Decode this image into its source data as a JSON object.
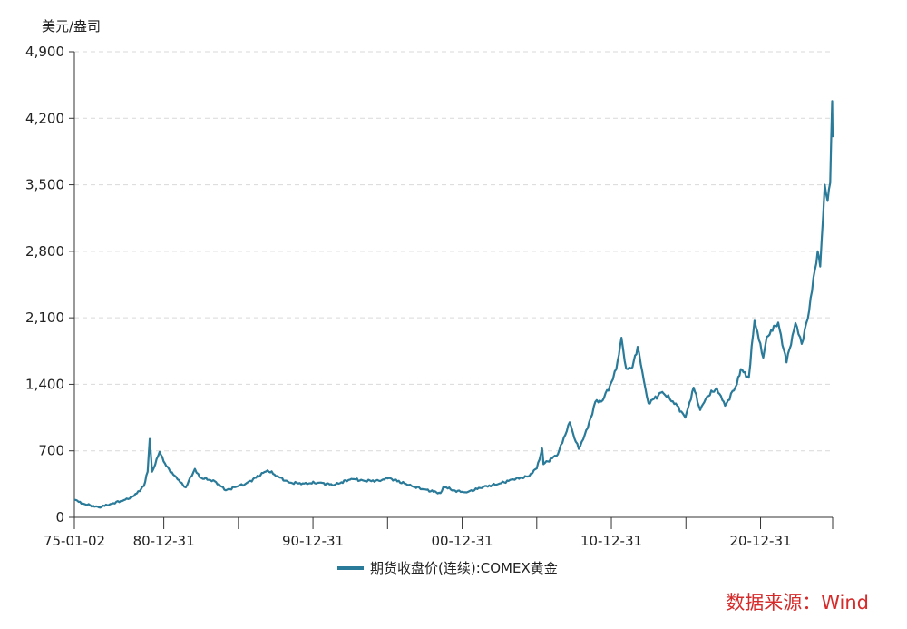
{
  "chart_data": {
    "type": "line",
    "ylabel": "美元/盎司",
    "ylim": [
      0,
      4900
    ],
    "yticks": [
      0,
      700,
      1400,
      2100,
      2800,
      3500,
      4200,
      4900
    ],
    "ytick_labels": [
      "0",
      "700",
      "1,400",
      "2,100",
      "2,800",
      "3,500",
      "4,200",
      "4,900"
    ],
    "x_range": [
      "1975-01-02",
      "2025-10-31"
    ],
    "xtick_labels": [
      {
        "date": "1975-01-02",
        "label": "75-01-02"
      },
      {
        "date": "1980-12-31",
        "label": "80-12-31"
      },
      {
        "date": "1990-12-31",
        "label": "90-12-31"
      },
      {
        "date": "2000-12-31",
        "label": "00-12-31"
      },
      {
        "date": "2010-12-31",
        "label": "10-12-31"
      },
      {
        "date": "2020-12-31",
        "label": "20-12-31"
      }
    ],
    "minor_tick_dates": [
      "1985-12-31",
      "1995-12-31",
      "2005-12-31",
      "2015-12-31",
      "2025-10-31"
    ],
    "grid": true,
    "legend_position": "bottom-center",
    "series": [
      {
        "name": "期货收盘价(连续):COMEX黄金",
        "color": "#2a7a99",
        "points": [
          [
            "1975-01-02",
            185
          ],
          [
            "1975-09-01",
            140
          ],
          [
            "1976-08-25",
            105
          ],
          [
            "1977-06-01",
            140
          ],
          [
            "1978-06-01",
            185
          ],
          [
            "1979-01-01",
            225
          ],
          [
            "1979-09-01",
            330
          ],
          [
            "1979-12-01",
            480
          ],
          [
            "1980-01-21",
            825
          ],
          [
            "1980-03-20",
            480
          ],
          [
            "1980-09-20",
            690
          ],
          [
            "1981-03-01",
            540
          ],
          [
            "1981-12-01",
            400
          ],
          [
            "1982-06-21",
            315
          ],
          [
            "1983-01-31",
            510
          ],
          [
            "1983-06-01",
            420
          ],
          [
            "1984-06-01",
            380
          ],
          [
            "1985-02-25",
            285
          ],
          [
            "1985-12-31",
            330
          ],
          [
            "1986-06-01",
            345
          ],
          [
            "1987-12-14",
            495
          ],
          [
            "1988-06-01",
            450
          ],
          [
            "1989-06-01",
            365
          ],
          [
            "1990-06-01",
            355
          ],
          [
            "1991-06-01",
            365
          ],
          [
            "1992-06-01",
            340
          ],
          [
            "1993-07-30",
            405
          ],
          [
            "1994-06-01",
            385
          ],
          [
            "1995-06-01",
            385
          ],
          [
            "1996-02-01",
            415
          ],
          [
            "1997-06-01",
            340
          ],
          [
            "1998-06-01",
            295
          ],
          [
            "1999-07-20",
            255
          ],
          [
            "1999-10-01",
            325
          ],
          [
            "2000-06-01",
            285
          ],
          [
            "2001-02-01",
            265
          ],
          [
            "2001-06-01",
            270
          ],
          [
            "2002-06-01",
            320
          ],
          [
            "2003-06-01",
            350
          ],
          [
            "2004-06-01",
            400
          ],
          [
            "2005-06-01",
            430
          ],
          [
            "2005-12-31",
            515
          ],
          [
            "2006-05-12",
            725
          ],
          [
            "2006-06-14",
            560
          ],
          [
            "2007-06-01",
            665
          ],
          [
            "2008-03-17",
            1000
          ],
          [
            "2008-06-01",
            890
          ],
          [
            "2008-10-24",
            720
          ],
          [
            "2009-06-01",
            940
          ],
          [
            "2009-12-03",
            1215
          ],
          [
            "2010-06-01",
            1230
          ],
          [
            "2010-12-31",
            1420
          ],
          [
            "2011-05-01",
            1560
          ],
          [
            "2011-09-06",
            1890
          ],
          [
            "2011-12-29",
            1565
          ],
          [
            "2012-06-01",
            1580
          ],
          [
            "2012-10-04",
            1795
          ],
          [
            "2013-04-15",
            1350
          ],
          [
            "2013-06-28",
            1200
          ],
          [
            "2014-06-01",
            1320
          ],
          [
            "2015-06-01",
            1175
          ],
          [
            "2015-12-17",
            1050
          ],
          [
            "2016-07-06",
            1365
          ],
          [
            "2016-12-15",
            1130
          ],
          [
            "2017-06-01",
            1270
          ],
          [
            "2018-01-25",
            1360
          ],
          [
            "2018-08-16",
            1175
          ],
          [
            "2019-06-01",
            1400
          ],
          [
            "2019-09-04",
            1560
          ],
          [
            "2020-03-19",
            1470
          ],
          [
            "2020-08-06",
            2070
          ],
          [
            "2021-03-08",
            1680
          ],
          [
            "2021-06-01",
            1900
          ],
          [
            "2022-03-08",
            2050
          ],
          [
            "2022-09-28",
            1630
          ],
          [
            "2023-05-04",
            2045
          ],
          [
            "2023-10-05",
            1825
          ],
          [
            "2024-03-01",
            2090
          ],
          [
            "2024-10-30",
            2800
          ],
          [
            "2024-12-31",
            2640
          ],
          [
            "2025-04-21",
            3500
          ],
          [
            "2025-07-01",
            3330
          ],
          [
            "2025-09-01",
            3520
          ],
          [
            "2025-10-20",
            4380
          ],
          [
            "2025-10-31",
            4000
          ]
        ]
      }
    ]
  },
  "source_text": "数据来源：Wind"
}
